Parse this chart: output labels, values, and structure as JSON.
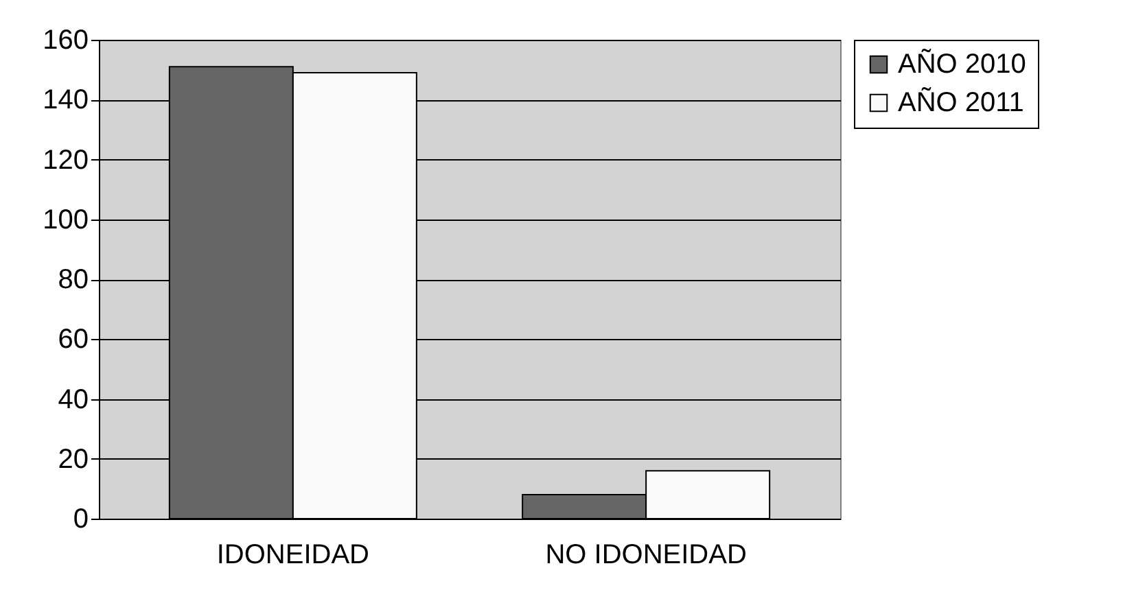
{
  "chart_data": {
    "type": "bar",
    "categories": [
      "IDONEIDAD",
      "NO IDONEIDAD"
    ],
    "series": [
      {
        "name": "AÑO 2010",
        "color": "#666666",
        "values": [
          151,
          8
        ]
      },
      {
        "name": "AÑO 2011",
        "color": "#fafafa",
        "values": [
          149,
          16
        ]
      }
    ],
    "ylim": [
      0,
      160
    ],
    "yticks": [
      0,
      20,
      40,
      60,
      80,
      100,
      120,
      140,
      160
    ],
    "grid": "y",
    "legend": "right"
  }
}
